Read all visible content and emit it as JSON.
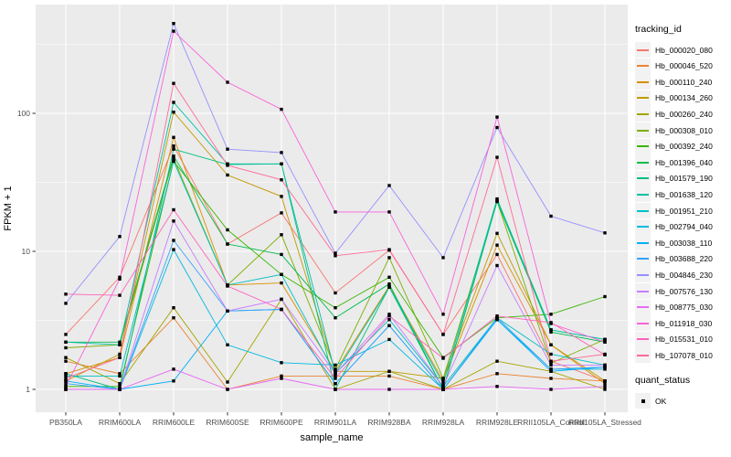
{
  "chart": {
    "y_axis": {
      "title": "FPKM + 1",
      "ticks": [
        "1",
        "10",
        "100"
      ],
      "tick_values": [
        1,
        10,
        100
      ],
      "minor_values": [
        3.162,
        31.62,
        316.2
      ]
    },
    "x_axis": {
      "title": "sample_name"
    },
    "legend": {
      "tracking_title": "tracking_id",
      "quant_title": "quant_status",
      "quant_value": "OK"
    },
    "colors": {
      "panel_bg": "#EBEBEB",
      "grid": "#FFFFFF",
      "axis_text": "#4D4D4D",
      "tick_mark": "#333333",
      "marker": "#000000",
      "legend_key_bg": "#F2F2F2"
    }
  },
  "chart_data": {
    "type": "line",
    "title": "",
    "xlabel": "sample_name",
    "ylabel": "FPKM + 1",
    "y_scale": "log10",
    "ylim": [
      0.68,
      600
    ],
    "grid": true,
    "legend_position": "right",
    "marker": "black-square",
    "categories": [
      "PB350LA",
      "RRIM600LA",
      "RRIM600LE",
      "RRIM600SE",
      "RRIM600PE",
      "RRIM901LA",
      "RRIM928BA",
      "RRIM928LA",
      "RRIM928LE",
      "RRII105LA_Control",
      "RRII105LA_Stressed"
    ],
    "series": [
      {
        "name": "Hb_000020_080",
        "color": "#F8766D",
        "values": [
          2.5,
          6.5,
          58,
          11.3,
          19,
          5.0,
          10.2,
          2.5,
          9.5,
          1.6,
          1.15
        ]
      },
      {
        "name": "Hb_000046_520",
        "color": "#EA8331",
        "values": [
          1.6,
          1.3,
          3.3,
          1.0,
          1.25,
          1.25,
          1.25,
          1.0,
          1.3,
          1.2,
          1.15
        ]
      },
      {
        "name": "Hb_000110_240",
        "color": "#D89000",
        "values": [
          1.3,
          1.7,
          67,
          5.7,
          5.9,
          1.35,
          5.6,
          1.15,
          11.1,
          2.1,
          1.1
        ]
      },
      {
        "name": "Hb_000134_260",
        "color": "#C09B00",
        "values": [
          1.15,
          1.8,
          102,
          35.7,
          25,
          1.35,
          1.35,
          1.2,
          13.5,
          2.1,
          1.15
        ]
      },
      {
        "name": "Hb_000260_240",
        "color": "#A3A500",
        "values": [
          1.7,
          1.1,
          3.9,
          1.13,
          4.5,
          1.0,
          1.35,
          1.0,
          1.6,
          1.35,
          1.0
        ]
      },
      {
        "name": "Hb_000308_010",
        "color": "#7CAE00",
        "values": [
          2.0,
          2.1,
          47,
          5.7,
          13.2,
          1.4,
          9.0,
          1.2,
          23,
          1.55,
          2.3
        ]
      },
      {
        "name": "Hb_000392_240",
        "color": "#39B600",
        "values": [
          1.05,
          1.05,
          45,
          14.3,
          6.8,
          3.9,
          6.5,
          1.7,
          3.3,
          3.5,
          4.7
        ]
      },
      {
        "name": "Hb_001396_040",
        "color": "#00BB4E",
        "values": [
          2.2,
          2.2,
          49,
          11.3,
          9.5,
          3.3,
          5.8,
          1.0,
          23,
          2.6,
          2.2
        ]
      },
      {
        "name": "Hb_001579_190",
        "color": "#00BF7D",
        "values": [
          1.3,
          1.0,
          55,
          42.6,
          43,
          1.0,
          5.5,
          1.0,
          23.5,
          2.7,
          2.3
        ]
      },
      {
        "name": "Hb_001638_120",
        "color": "#00C1A3",
        "values": [
          2.2,
          2.1,
          120,
          43,
          43,
          1.3,
          5.5,
          1.1,
          24,
          2.7,
          2.3
        ]
      },
      {
        "name": "Hb_001951_210",
        "color": "#00BFC4",
        "values": [
          1.25,
          1.25,
          45,
          5.7,
          6.8,
          1.3,
          3.2,
          1.05,
          3.3,
          1.8,
          1.5
        ]
      },
      {
        "name": "Hb_002794_040",
        "color": "#00BAE0",
        "values": [
          1.0,
          1.0,
          10.3,
          2.1,
          1.56,
          1.5,
          2.3,
          1.0,
          3.2,
          1.4,
          1.4
        ]
      },
      {
        "name": "Hb_003038_110",
        "color": "#00B0F6",
        "values": [
          1.15,
          1.0,
          1.15,
          3.7,
          3.8,
          1.1,
          2.9,
          1.0,
          3.2,
          1.35,
          1.45
        ]
      },
      {
        "name": "Hb_003688_220",
        "color": "#35A2FF",
        "values": [
          1.1,
          1.0,
          12,
          3.7,
          3.8,
          1.1,
          2.9,
          1.0,
          3.3,
          1.4,
          1.45
        ]
      },
      {
        "name": "Hb_004846_230",
        "color": "#9590FF",
        "values": [
          4.2,
          12.8,
          448,
          55,
          52,
          9.7,
          30,
          9.0,
          79,
          18,
          13.6
        ]
      },
      {
        "name": "Hb_007576_130",
        "color": "#C77CFF",
        "values": [
          1.0,
          1.0,
          16.6,
          3.7,
          4.5,
          1.3,
          3.5,
          1.05,
          7.9,
          1.5,
          1.5
        ]
      },
      {
        "name": "Hb_008775_030",
        "color": "#E76BF3",
        "values": [
          1.0,
          1.0,
          1.4,
          1.0,
          1.2,
          1.0,
          1.0,
          1.0,
          1.05,
          1.0,
          1.05
        ]
      },
      {
        "name": "Hb_011918_030",
        "color": "#FA62DB",
        "values": [
          1.05,
          6.3,
          394,
          168,
          107,
          19.3,
          19.3,
          3.5,
          94,
          3.0,
          2.2
        ]
      },
      {
        "name": "Hb_015531_010",
        "color": "#FF62BC",
        "values": [
          4.9,
          4.8,
          20,
          5.6,
          3.8,
          1.2,
          3.4,
          1.68,
          3.4,
          3.05,
          1.78
        ]
      },
      {
        "name": "Hb_107078_010",
        "color": "#FF6A98",
        "values": [
          1.2,
          1.7,
          165,
          42,
          33,
          9.3,
          10.3,
          2.5,
          48,
          1.6,
          1.8
        ]
      }
    ]
  }
}
